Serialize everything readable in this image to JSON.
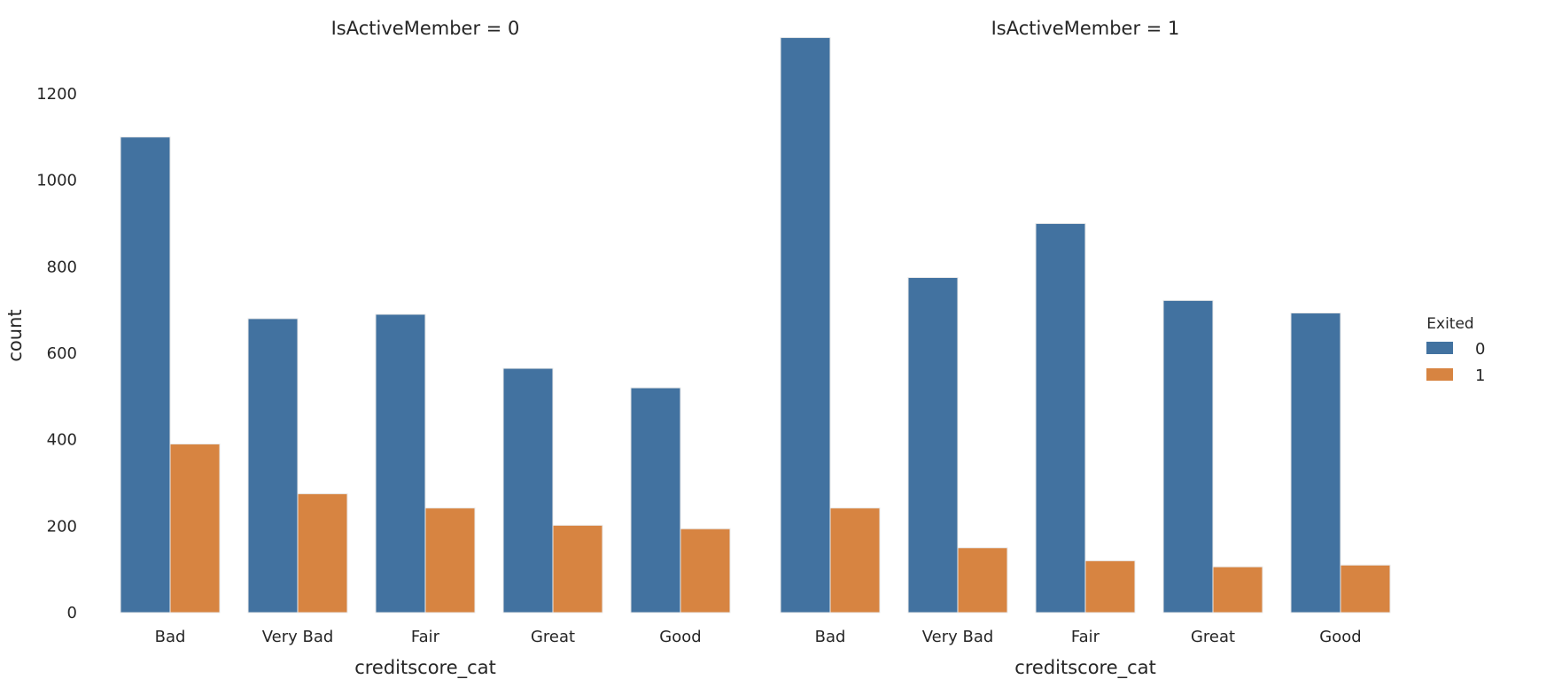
{
  "chart_data": {
    "type": "bar",
    "title": "",
    "ylabel": "count",
    "ylim": [
      0,
      1380
    ],
    "yticks": [
      0,
      200,
      400,
      600,
      800,
      1000,
      1200
    ],
    "grid": false,
    "legend": {
      "title": "Exited",
      "placement": "right",
      "entries": [
        "0",
        "1"
      ]
    },
    "colors": {
      "0": "#4272a0",
      "1": "#d78441"
    },
    "panels": [
      {
        "title": "IsActiveMember = 0",
        "xlabel": "creditscore_cat",
        "categories": [
          "Bad",
          "Very Bad",
          "Fair",
          "Great",
          "Good"
        ],
        "series": [
          {
            "name": "0",
            "values": [
              1100,
              680,
              690,
              565,
              520
            ]
          },
          {
            "name": "1",
            "values": [
              390,
              275,
              242,
              202,
              194
            ]
          }
        ]
      },
      {
        "title": "IsActiveMember = 1",
        "xlabel": "creditscore_cat",
        "categories": [
          "Bad",
          "Very Bad",
          "Fair",
          "Great",
          "Good"
        ],
        "series": [
          {
            "name": "0",
            "values": [
              1330,
              775,
              900,
              722,
              693
            ]
          },
          {
            "name": "1",
            "values": [
              242,
              150,
              120,
              106,
              110
            ]
          }
        ]
      }
    ]
  }
}
